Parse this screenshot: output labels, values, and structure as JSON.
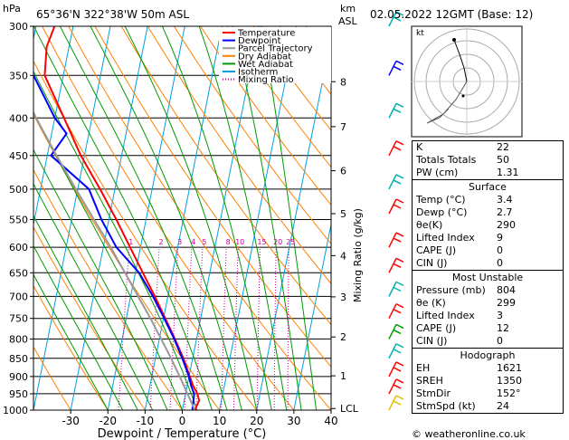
{
  "header": {
    "hpa_label": "hPa",
    "location": "65°36'N  322°38'W  50m  ASL",
    "km_label": "km",
    "asl_label": "ASL",
    "datetime": "02.05.2022  12GMT  (Base: 12)"
  },
  "footer": {
    "copyright": "© weatheronline.co.uk"
  },
  "hodograph": {
    "unit_label": "kt"
  },
  "indices": {
    "rows": [
      {
        "label": "K",
        "value": "22"
      },
      {
        "label": "Totals Totals",
        "value": "50"
      },
      {
        "label": "PW (cm)",
        "value": "1.31"
      }
    ]
  },
  "surface": {
    "title": "Surface",
    "rows": [
      {
        "label": "Temp (°C)",
        "value": "3.4"
      },
      {
        "label": "Dewp (°C)",
        "value": "2.7"
      },
      {
        "label": "θe(K)",
        "value": "290"
      },
      {
        "label": "Lifted Index",
        "value": "9"
      },
      {
        "label": "CAPE (J)",
        "value": "0"
      },
      {
        "label": "CIN (J)",
        "value": "0"
      }
    ]
  },
  "most_unstable": {
    "title": "Most Unstable",
    "rows": [
      {
        "label": "Pressure (mb)",
        "value": "804"
      },
      {
        "label": "θe (K)",
        "value": "299"
      },
      {
        "label": "Lifted Index",
        "value": "3"
      },
      {
        "label": "CAPE (J)",
        "value": "12"
      },
      {
        "label": "CIN (J)",
        "value": "0"
      }
    ]
  },
  "hodo_table": {
    "title": "Hodograph",
    "rows": [
      {
        "label": "EH",
        "value": "1621"
      },
      {
        "label": "SREH",
        "value": "1350"
      },
      {
        "label": "StmDir",
        "value": "152°"
      },
      {
        "label": "StmSpd (kt)",
        "value": "24"
      }
    ]
  },
  "chart_data": {
    "type": "line",
    "title": "",
    "xlabel": "Dewpoint / Temperature (°C)",
    "ylabel": "hPa",
    "y2label": "Mixing Ratio (g/kg)",
    "xlim": [
      -40,
      40
    ],
    "ylim": [
      1000,
      300
    ],
    "x_ticks": [
      -30,
      -20,
      -10,
      0,
      10,
      20,
      30,
      40
    ],
    "pressure_levels": [
      300,
      350,
      400,
      450,
      500,
      550,
      600,
      650,
      700,
      750,
      800,
      850,
      900,
      950,
      1000
    ],
    "km_ticks": [
      {
        "label": "8",
        "p": 357
      },
      {
        "label": "7",
        "p": 411
      },
      {
        "label": "6",
        "p": 472
      },
      {
        "label": "5",
        "p": 540
      },
      {
        "label": "4",
        "p": 616
      },
      {
        "label": "3",
        "p": 701
      },
      {
        "label": "2",
        "p": 795
      },
      {
        "label": "1",
        "p": 898
      },
      {
        "label": "LCL",
        "p": 995
      }
    ],
    "mixing_ratio_labels": [
      "1",
      "2",
      "3",
      "4",
      "5",
      "8",
      "10",
      "15",
      "20",
      "25"
    ],
    "legend": [
      {
        "label": "Temperature",
        "color": "#ff0000"
      },
      {
        "label": "Dewpoint",
        "color": "#0000ff"
      },
      {
        "label": "Parcel Trajectory",
        "color": "#999999"
      },
      {
        "label": "Dry Adiabat",
        "color": "#ff8000"
      },
      {
        "label": "Wet Adiabat",
        "color": "#009900"
      },
      {
        "label": "Isotherm",
        "color": "#00a0e0"
      },
      {
        "label": "Mixing Ratio",
        "color": "#cc0099"
      }
    ],
    "series": [
      {
        "name": "Temperature",
        "color": "#ff0000",
        "p": [
          1000,
          970,
          950,
          925,
          900,
          850,
          800,
          750,
          700,
          650,
          600,
          550,
          500,
          450,
          400,
          350,
          320,
          300
        ],
        "t": [
          3.4,
          4,
          3.2,
          1.5,
          0.2,
          -2.5,
          -5.8,
          -9.5,
          -13.5,
          -18,
          -22.8,
          -28,
          -34,
          -41,
          -47.5,
          -55,
          -56,
          -55
        ]
      },
      {
        "name": "Dewpoint",
        "color": "#0000ff",
        "p": [
          1000,
          970,
          950,
          925,
          900,
          850,
          800,
          750,
          700,
          650,
          600,
          550,
          500,
          450,
          420,
          400,
          350,
          330,
          300
        ],
        "t": [
          2.7,
          2.5,
          2.3,
          1.0,
          0,
          -2.8,
          -6,
          -9.8,
          -14,
          -19,
          -26.5,
          -32,
          -37,
          -49,
          -46,
          -50,
          -58,
          -62,
          -64
        ]
      },
      {
        "name": "Parcel Trajectory",
        "color": "#999999",
        "p": [
          1000,
          950,
          900,
          850,
          800,
          750,
          700,
          650,
          600,
          550,
          500,
          450,
          400,
          350,
          300
        ],
        "t": [
          3.4,
          0.5,
          -2.5,
          -5.8,
          -9.5,
          -13.5,
          -18,
          -22.8,
          -28,
          -34,
          -40.5,
          -47.5,
          -55,
          -63,
          -72
        ]
      }
    ],
    "wind_barbs": "shown at right of diagram",
    "hodograph_rings": true
  }
}
